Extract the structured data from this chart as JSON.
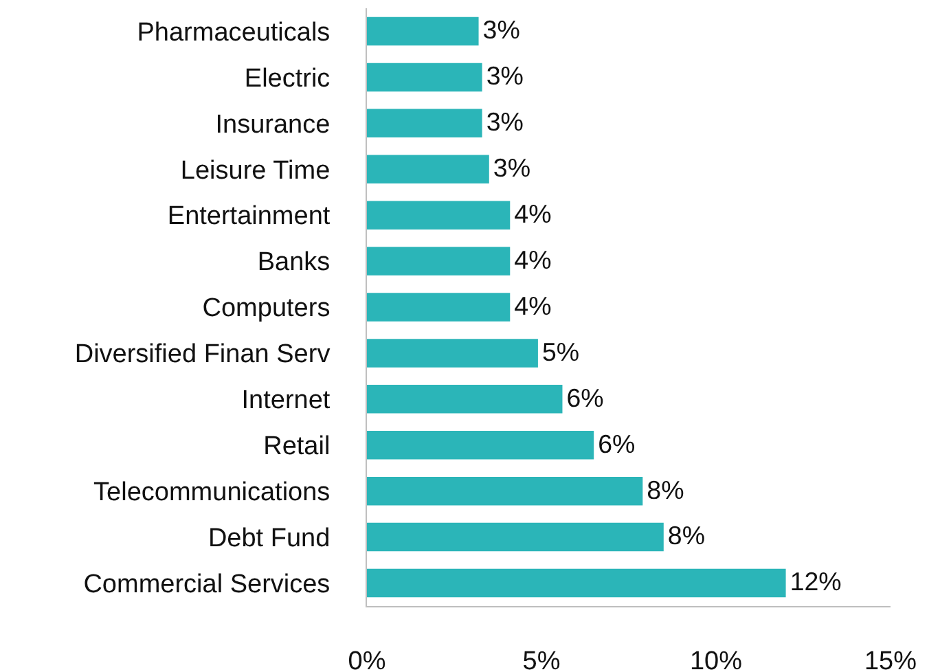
{
  "chart_data": {
    "type": "bar",
    "orientation": "horizontal",
    "categories": [
      "Pharmaceuticals",
      "Electric",
      "Insurance",
      "Leisure Time",
      "Entertainment",
      "Banks",
      "Computers",
      "Diversified Finan Serv",
      "Internet",
      "Retail",
      "Telecommunications",
      "Debt Fund",
      "Commercial Services"
    ],
    "values": [
      3.2,
      3.3,
      3.3,
      3.5,
      4.1,
      4.1,
      4.1,
      4.9,
      5.6,
      6.5,
      7.9,
      8.5,
      12.0
    ],
    "value_labels": [
      "3%",
      "3%",
      "3%",
      "3%",
      "4%",
      "4%",
      "4%",
      "5%",
      "6%",
      "6%",
      "8%",
      "8%",
      "12%"
    ],
    "color": "#2bb5b8",
    "xlim": [
      0,
      15
    ],
    "xticks": [
      {
        "value": 0,
        "label": "0%"
      },
      {
        "value": 5,
        "label": "5%"
      },
      {
        "value": 10,
        "label": "10%"
      },
      {
        "value": 15,
        "label": "15%"
      }
    ],
    "grid": false,
    "legend": false
  }
}
